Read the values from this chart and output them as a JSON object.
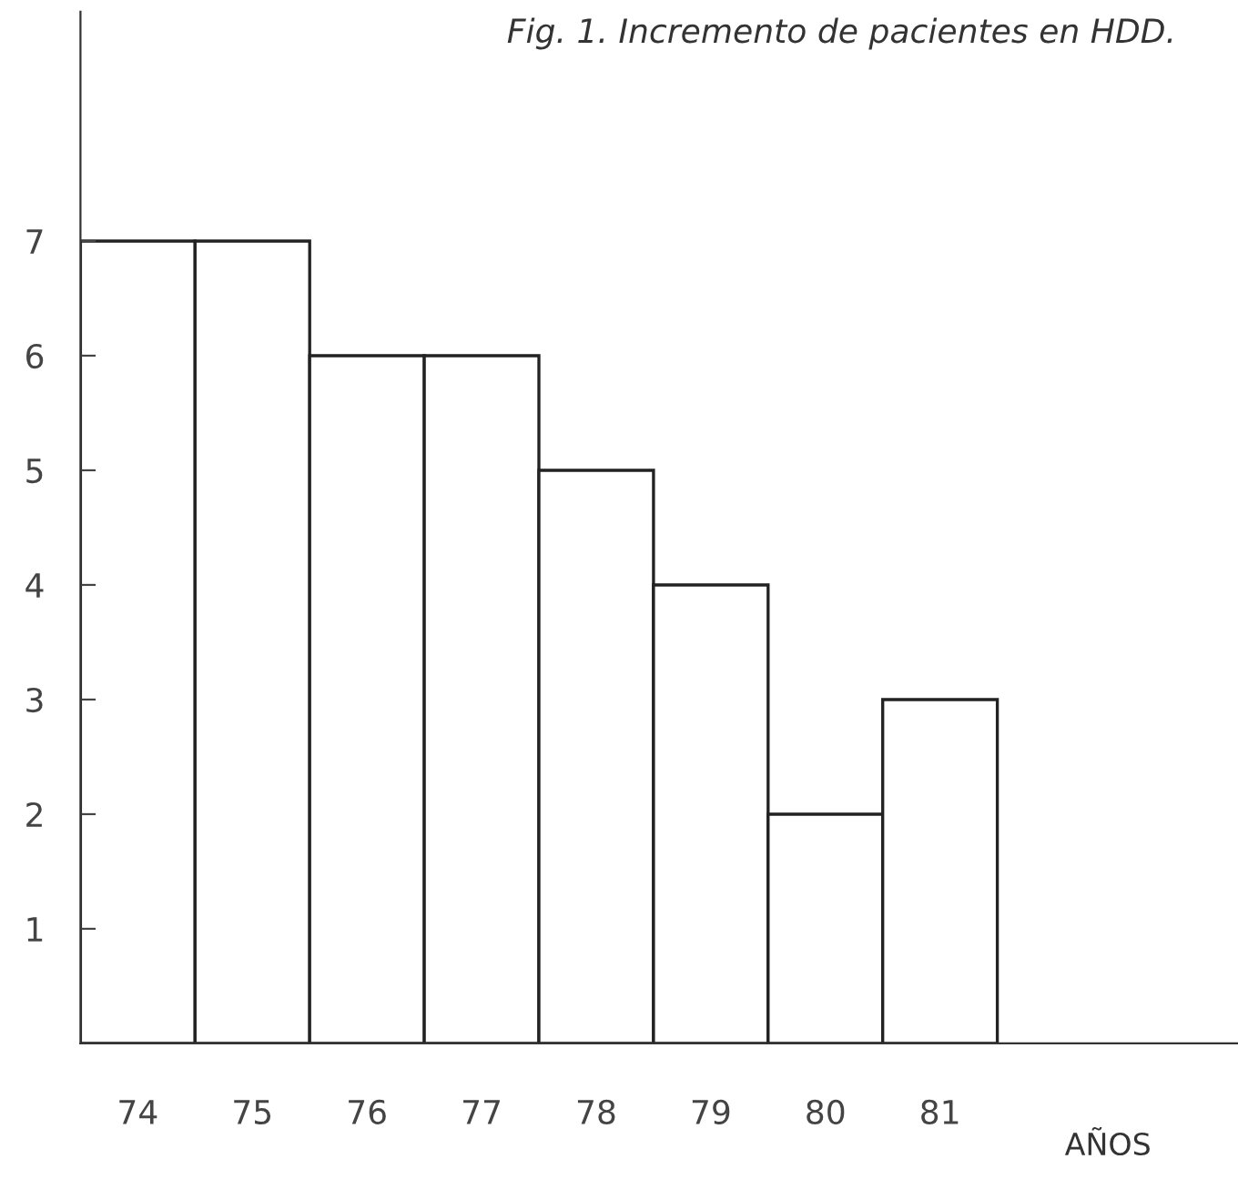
{
  "chart_data": {
    "type": "bar",
    "title": "Fig. 1. Incremento de pacientes en HDD.",
    "xlabel": "AÑOS",
    "categories": [
      "74",
      "75",
      "76",
      "77",
      "78",
      "79",
      "80",
      "81"
    ],
    "values": [
      7,
      7,
      6,
      6,
      5,
      4,
      2,
      3
    ],
    "color": "#ffffff",
    "ylim": [
      0,
      9
    ],
    "yticks": [
      1,
      2,
      3,
      4,
      5,
      6,
      7
    ],
    "grid": false,
    "legend": false
  }
}
